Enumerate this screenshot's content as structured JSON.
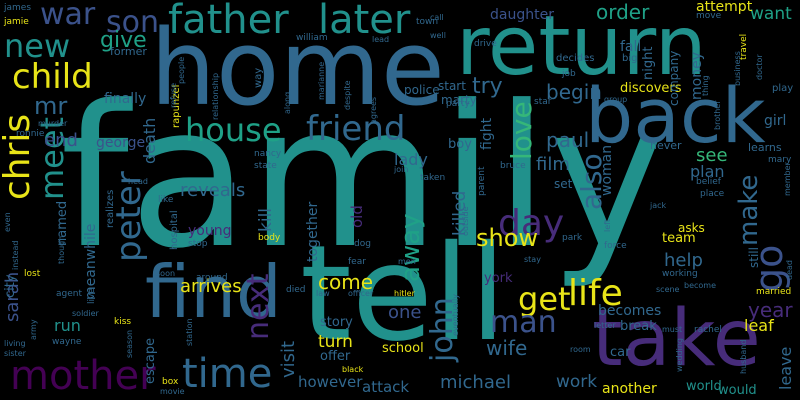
{
  "palette": {
    "background": "#000000",
    "teal": "#21918c",
    "blue": "#3b528b",
    "steel": "#31688e",
    "violet": "#472c7a",
    "purple": "#440154",
    "green": "#35b779",
    "lime": "#90d743",
    "yellow": "#e8e418",
    "sea": "#1fa187"
  },
  "words": {
    "family": "family",
    "home": "home",
    "return": "return",
    "tell": "tell",
    "take": "take",
    "back": "back",
    "find": "find",
    "father": "father",
    "later": "later",
    "house": "house",
    "friend": "friend",
    "mother": "mother",
    "time": "time",
    "child": "child",
    "chris": "chris",
    "new": "new",
    "son": "son",
    "war": "war",
    "give": "give",
    "meet": "meet",
    "peter": "peter",
    "life": "life",
    "get": "get",
    "go": "go",
    "next": "next",
    "man": "man",
    "john": "john",
    "day": "day",
    "love": "love",
    "also": "also",
    "make": "make",
    "show": "show",
    "away": "away",
    "begin": "begin",
    "try": "try",
    "paul": "paul",
    "order": "order",
    "want": "want",
    "attempt": "attempt",
    "daughter": "daughter",
    "film": "film",
    "see": "see",
    "plan": "plan",
    "help": "help",
    "year": "year",
    "leaf": "leaf",
    "leave": "leave",
    "wife": "wife",
    "michael": "michael",
    "attack": "attack",
    "work": "work",
    "another": "another",
    "world": "world",
    "would": "would",
    "school": "school",
    "however": "however",
    "turn": "turn",
    "offer": "offer",
    "story": "story",
    "come": "come",
    "one": "one",
    "visit": "visit",
    "together": "together",
    "arrives": "arrives",
    "reveals": "reveals",
    "young": "young",
    "kill": "kill",
    "killed": "killed",
    "old": "old",
    "death": "death",
    "lady": "lady",
    "finally": "finally",
    "run": "run",
    "sarah": "sarah",
    "end": "end",
    "mr": "mr",
    "george": "george",
    "meanwhile": "meanwhile",
    "named": "named",
    "fall": "fall",
    "night": "night",
    "discovers": "discovers",
    "money": "money",
    "girl": "girl",
    "learns": "learns",
    "woman": "woman",
    "fight": "fight",
    "boy": "boy",
    "police": "police",
    "marty": "marty",
    "start": "start",
    "becomes": "becomes",
    "team": "team",
    "asks": "asks",
    "break": "break",
    "york": "york",
    "escape": "escape",
    "city": "city",
    "drive": "drive",
    "company": "company",
    "still": "still",
    "never": "never",
    "james": "james",
    "jamie": "jamie",
    "former": "former",
    "william": "william",
    "town": "town",
    "call": "call",
    "lead": "lead",
    "well": "well",
    "decides": "decides",
    "big": "big",
    "move": "move",
    "travel": "travel",
    "doctor": "doctor",
    "play": "play",
    "business": "business",
    "thing": "thing",
    "brother": "brother",
    "people": "people",
    "rapunzel": "rapunzel",
    "relationship": "relationship",
    "refuse": "refuse",
    "way": "way",
    "marianne": "marianne",
    "despite": "despite",
    "agrees": "agrees",
    "along": "along",
    "party": "party",
    "star": "star",
    "job": "job",
    "group": "group",
    "ronnie": "ronnie",
    "murder": "murder",
    "nancy": "nancy",
    "state": "state",
    "join": "join",
    "taken": "taken",
    "bruce": "bruce",
    "parent": "parent",
    "set": "set",
    "mary": "mary",
    "belief": "belief",
    "member": "member",
    "head": "head",
    "like": "like",
    "realizes": "realizes",
    "hospital": "hospital",
    "stop": "stop",
    "body": "body",
    "dog": "dog",
    "outside": "outside",
    "park": "park",
    "jack": "jack",
    "place": "place",
    "left": "left",
    "force": "force",
    "lost": "lost",
    "soon": "soon",
    "around": "around",
    "fear": "fear",
    "men": "men",
    "stay": "stay",
    "working": "working",
    "become": "become",
    "dead": "dead",
    "married": "married",
    "agent": "agent",
    "live": "live",
    "soldier": "soldier",
    "kiss": "kiss",
    "died": "died",
    "law": "law",
    "officer": "officer",
    "hitler": "hitler",
    "eventually": "eventually",
    "letter": "letter",
    "scene": "scene",
    "rachel": "rachel",
    "must": "must",
    "living": "living",
    "sister": "sister",
    "wayne": "wayne",
    "season": "season",
    "station": "station",
    "room": "room",
    "car": "car",
    "wedding": "wedding",
    "husband": "husband",
    "box": "box",
    "movie": "movie",
    "black": "black",
    "army": "army",
    "though": "though",
    "even": "even",
    "instead": "instead"
  }
}
